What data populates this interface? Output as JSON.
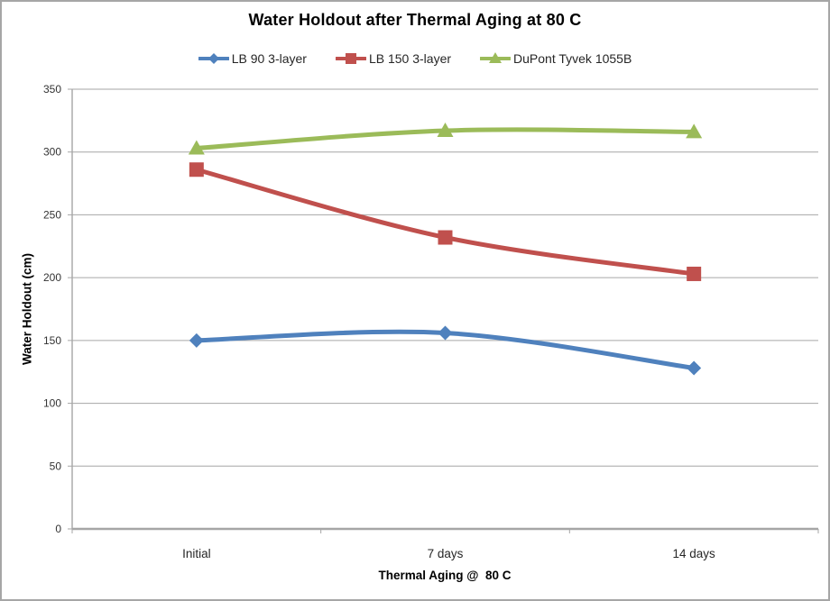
{
  "chart_data": {
    "type": "line",
    "title": "Water Holdout after Thermal Aging at 80 C",
    "xlabel": "Thermal Aging @  80 C",
    "ylabel": "Water Holdout (cm)",
    "categories": [
      "Initial",
      "7 days",
      "14 days"
    ],
    "series": [
      {
        "name": "LB 90 3-layer",
        "color": "#4F81BD",
        "marker": "diamond",
        "values": [
          150,
          156,
          128
        ]
      },
      {
        "name": "LB 150 3-layer",
        "color": "#C0504D",
        "marker": "square",
        "values": [
          286,
          232,
          203
        ]
      },
      {
        "name": "DuPont Tyvek 1055B",
        "color": "#9BBB59",
        "marker": "triangle",
        "values": [
          303,
          317,
          316
        ]
      }
    ],
    "ylim": [
      0,
      350
    ],
    "yticks": [
      0,
      50,
      100,
      150,
      200,
      250,
      300,
      350
    ],
    "grid": true,
    "smooth": true,
    "legend_position": "top",
    "axis_color": "#a6a6a6",
    "gridline_color": "#a6a6a6",
    "tick_label_color": "#333333"
  }
}
